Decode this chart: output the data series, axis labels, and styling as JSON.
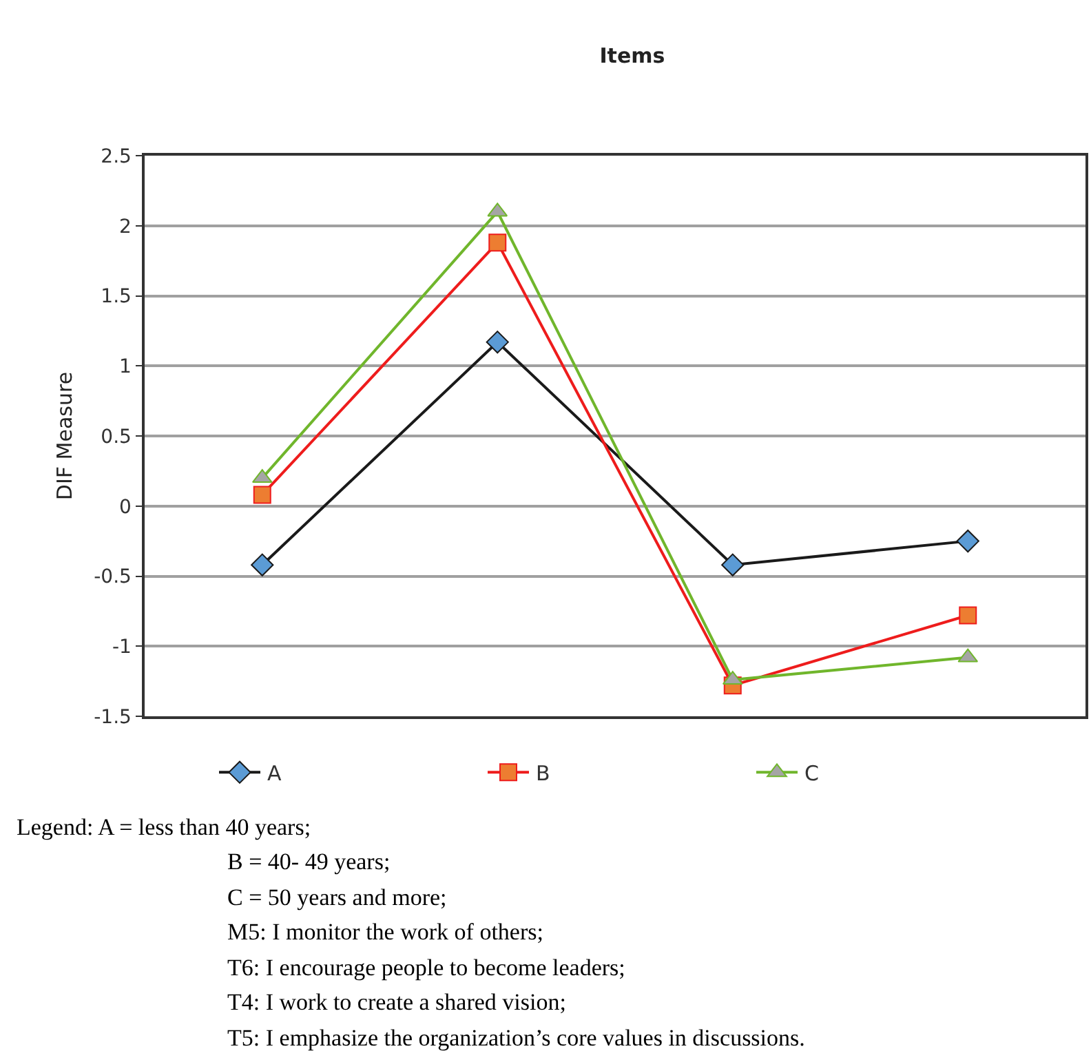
{
  "chart_data": {
    "type": "line",
    "title": "Items",
    "ylabel": "DIF Measure",
    "categories": [
      null,
      null,
      null,
      null
    ],
    "series": [
      {
        "name": "A",
        "color": "#1a1a1a",
        "colors": [
          "#5b9bd5",
          "#5b9bd5",
          "#5b9bd5",
          "#5b9bd5"
        ],
        "marker": "diamond",
        "values": [
          -0.42,
          1.17,
          -0.42,
          -0.25
        ]
      },
      {
        "name": "B",
        "color": "#ee1c1c",
        "colors": [
          "#ed7d31",
          "#ed7d31",
          "#ed7d31",
          "#ed7d31"
        ],
        "marker": "square",
        "values": [
          0.08,
          1.88,
          -1.28,
          -0.78
        ]
      },
      {
        "name": "C",
        "color": "#70b62c",
        "colors": [
          "#a5a5a5",
          "#a5a5a5",
          "#a5a5a5",
          "#a5a5a5"
        ],
        "marker": "triangle",
        "values": [
          0.2,
          2.1,
          -1.24,
          -1.08
        ]
      }
    ],
    "ylim": [
      -1.5,
      2.5
    ],
    "yticks": [
      -1.5,
      -1,
      -0.5,
      0,
      0.5,
      1,
      1.5,
      2,
      2.5
    ],
    "grid": "y",
    "legend": "bottom",
    "annotations": [
      "Legend: A = less than 40 years;",
      "B = 40- 49 years;",
      "C = 50 years and more;",
      "M5: I monitor the work of others;",
      "T6: I encourage people to become leaders;",
      "T4: I work to create a shared vision;",
      "T5: I emphasize the organization’s core values in discussions."
    ]
  }
}
